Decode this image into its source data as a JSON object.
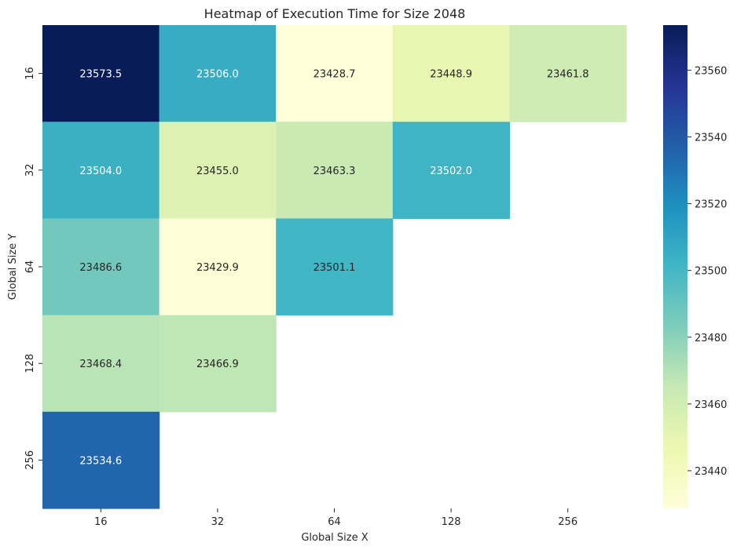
{
  "chart_data": {
    "type": "heatmap",
    "title": "Heatmap of Execution Time for Size 2048",
    "xlabel": "Global Size X",
    "ylabel": "Global Size Y",
    "x_categories": [
      "16",
      "32",
      "64",
      "128",
      "256"
    ],
    "y_categories": [
      "16",
      "32",
      "64",
      "128",
      "256"
    ],
    "values": [
      [
        23573.5,
        23506.0,
        23428.7,
        23448.9,
        23461.8
      ],
      [
        23504.0,
        23455.0,
        23463.3,
        23502.0,
        null
      ],
      [
        23486.6,
        23429.9,
        23501.1,
        null,
        null
      ],
      [
        23468.4,
        23466.9,
        null,
        null,
        null
      ],
      [
        23534.6,
        null,
        null,
        null,
        null
      ]
    ],
    "value_labels": [
      [
        "23573.5",
        "23506.0",
        "23428.7",
        "23448.9",
        "23461.8"
      ],
      [
        "23504.0",
        "23455.0",
        "23463.3",
        "23502.0",
        null
      ],
      [
        "23486.6",
        "23429.9",
        "23501.1",
        null,
        null
      ],
      [
        "23468.4",
        "23466.9",
        null,
        null,
        null
      ],
      [
        "23534.6",
        null,
        null,
        null,
        null
      ]
    ],
    "colormap": "YlGnBu",
    "color_range": [
      23428.7,
      23573.5
    ],
    "colorbar_ticks": [
      23440,
      23460,
      23480,
      23500,
      23520,
      23540,
      23560
    ],
    "colorbar_tick_labels": [
      "23440",
      "23460",
      "23480",
      "23500",
      "23520",
      "23540",
      "23560"
    ],
    "legend": "colorbar-right"
  }
}
